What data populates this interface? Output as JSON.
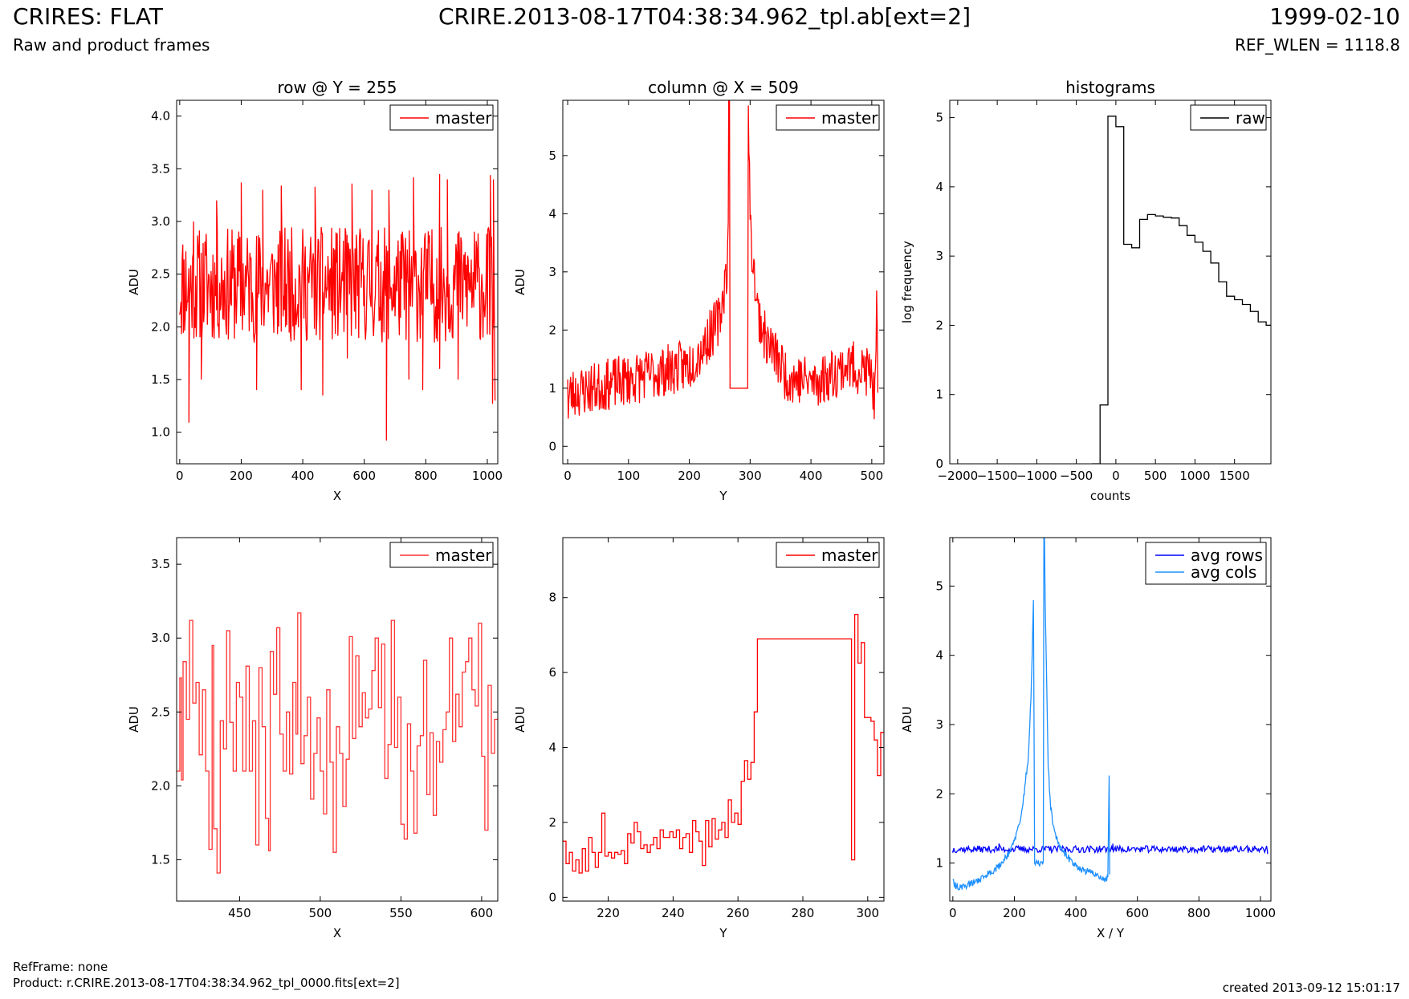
{
  "header": {
    "title": "CRIRES: FLAT",
    "subtitle": "Raw and product frames",
    "file": "CRIRE.2013-08-17T04:38:34.962_tpl.ab[ext=2]",
    "date": "1999-02-10",
    "ref_wlen": "REF_WLEN = 1118.8"
  },
  "footer": {
    "refframe": "RefFrame: none",
    "product": "Product: r.CRIRE.2013-08-17T04:38:34.962_tpl_0000.fits[ext=2]",
    "created": "created 2013-09-12 15:01:17"
  },
  "colors": {
    "master": "#ff0000",
    "raw": "#000000",
    "avg_rows": "#0000ff",
    "avg_cols": "#1e90ff"
  },
  "chart_data": [
    {
      "id": "row-full",
      "type": "line",
      "title": "row @ Y = 255",
      "xlabel": "X",
      "ylabel": "ADU",
      "xlim": [
        -10,
        1034
      ],
      "ylim": [
        0.7,
        4.15
      ],
      "xticks": [
        0,
        200,
        400,
        600,
        800,
        1000
      ],
      "yticks": [
        1.0,
        1.5,
        2.0,
        2.5,
        3.0,
        3.5,
        4.0
      ],
      "tick_decimals": 1,
      "legend": "top-right",
      "series": [
        {
          "name": "master",
          "color": "#ff0000",
          "step": false,
          "noise": {
            "seed": 11,
            "x_from": 0,
            "x_to": 1023,
            "step": 2,
            "amp": 0.55,
            "shape": "flat",
            "base": 2.4
          },
          "x": [
            30,
            45,
            70,
            120,
            200,
            250,
            270,
            330,
            395,
            440,
            465,
            545,
            560,
            625,
            672,
            680,
            745,
            760,
            790,
            845,
            845,
            870,
            905,
            1010,
            1017,
            1020,
            1025
          ],
          "y": [
            1.09,
            3.0,
            1.5,
            3.2,
            3.37,
            1.4,
            3.3,
            3.34,
            1.4,
            3.33,
            1.35,
            1.7,
            3.36,
            3.3,
            0.92,
            3.3,
            1.5,
            3.42,
            1.4,
            3.45,
            1.6,
            3.4,
            1.5,
            3.44,
            1.27,
            3.4,
            1.3
          ]
        }
      ]
    },
    {
      "id": "col-full",
      "type": "line",
      "title": "column @ X = 509",
      "xlabel": "Y",
      "ylabel": "ADU",
      "xlim": [
        -8,
        520
      ],
      "ylim": [
        -0.3,
        5.95
      ],
      "xticks": [
        0,
        100,
        200,
        300,
        400,
        500
      ],
      "yticks": [
        0,
        1,
        2,
        3,
        4,
        5
      ],
      "tick_decimals": 0,
      "legend": "top-right",
      "series": [
        {
          "name": "master",
          "color": "#ff0000",
          "step": false,
          "noise": {
            "seed": 23,
            "x_from": 0,
            "x_to": 510,
            "step": 1,
            "amp": 0.45,
            "shape": "peak",
            "center": 288,
            "base": 0.6,
            "gap": [
              266,
              296
            ]
          },
          "x": [
            0,
            1,
            3,
            200,
            225,
            250,
            262,
            264,
            265,
            266,
            266,
            296,
            296,
            297,
            300,
            305,
            312,
            325,
            340,
            360,
            410,
            460,
            500,
            505,
            508,
            510
          ],
          "y": [
            1.38,
            0.6,
            0.9,
            1.4,
            1.75,
            2.2,
            3.1,
            3.6,
            6.2,
            6.2,
            1.0,
            1.0,
            6.2,
            6.2,
            3.75,
            3.2,
            2.35,
            1.85,
            1.6,
            1.2,
            1.1,
            1.4,
            1.25,
            0.7,
            2.3,
            0.9
          ]
        }
      ]
    },
    {
      "id": "histogram",
      "type": "line",
      "title": "histograms",
      "xlabel": "counts",
      "ylabel": "log frequency",
      "xlim": [
        -2100,
        1960
      ],
      "ylim": [
        0,
        5.25
      ],
      "xticks": [
        -2000,
        -1500,
        -1000,
        -500,
        0,
        500,
        1000,
        1500
      ],
      "xtick_labels": [
        "−2000",
        "−1500",
        "−1000",
        "−500",
        "0",
        "500",
        "1000",
        "1500"
      ],
      "yticks": [
        0,
        1,
        2,
        3,
        4,
        5
      ],
      "tick_decimals": 0,
      "legend": "top-right",
      "series": [
        {
          "name": "raw",
          "color": "#000000",
          "step": true,
          "x": [
            -300,
            -200,
            -100,
            0,
            100,
            200,
            300,
            400,
            500,
            600,
            700,
            800,
            900,
            1000,
            1100,
            1200,
            1300,
            1400,
            1500,
            1600,
            1700,
            1800,
            1900,
            1960
          ],
          "y": [
            0,
            0.85,
            5.02,
            4.87,
            3.17,
            3.12,
            3.53,
            3.6,
            3.58,
            3.56,
            3.55,
            3.44,
            3.3,
            3.2,
            3.07,
            2.9,
            2.63,
            2.42,
            2.37,
            2.3,
            2.2,
            2.05,
            2.0,
            2.0
          ]
        }
      ]
    },
    {
      "id": "row-zoom",
      "type": "line",
      "title": "",
      "xlabel": "X",
      "ylabel": "ADU",
      "xlim": [
        411,
        610
      ],
      "ylim": [
        1.22,
        3.68
      ],
      "xticks": [
        450,
        500,
        550,
        600
      ],
      "yticks": [
        1.5,
        2.0,
        2.5,
        3.0,
        3.5
      ],
      "tick_decimals": 1,
      "legend": "top-right",
      "series": [
        {
          "name": "master",
          "color": "#ff3333",
          "step": true,
          "x": [
            411,
            413,
            414,
            415,
            417,
            419,
            421,
            423,
            425,
            427,
            429,
            431,
            433,
            434,
            436,
            438,
            440,
            442,
            444,
            446,
            448,
            450,
            452,
            454,
            456,
            458,
            460,
            462,
            464,
            466,
            468,
            469,
            471,
            473,
            475,
            477,
            479,
            481,
            483,
            485,
            486,
            488,
            490,
            492,
            494,
            496,
            498,
            500,
            502,
            504,
            506,
            508,
            510,
            512,
            514,
            516,
            518,
            520,
            522,
            524,
            526,
            528,
            530,
            532,
            534,
            536,
            538,
            540,
            542,
            544,
            546,
            548,
            550,
            552,
            554,
            556,
            558,
            560,
            562,
            564,
            566,
            568,
            570,
            572,
            574,
            576,
            578,
            580,
            582,
            584,
            586,
            588,
            590,
            592,
            594,
            596,
            598,
            600,
            602,
            604,
            606,
            608,
            610
          ],
          "y": [
            2.1,
            2.73,
            2.04,
            2.84,
            2.45,
            3.12,
            2.56,
            2.7,
            2.21,
            2.65,
            2.1,
            1.57,
            2.95,
            1.71,
            1.41,
            2.44,
            2.25,
            3.05,
            2.43,
            2.1,
            2.7,
            2.6,
            2.1,
            2.81,
            2.1,
            2.44,
            1.6,
            2.8,
            2.4,
            1.78,
            1.56,
            2.91,
            2.62,
            3.07,
            2.35,
            2.1,
            2.5,
            2.08,
            2.7,
            2.35,
            3.17,
            2.15,
            2.34,
            2.6,
            1.91,
            2.22,
            2.46,
            2.1,
            1.81,
            2.65,
            2.16,
            1.55,
            2.4,
            2.22,
            1.86,
            2.18,
            3.01,
            2.32,
            2.88,
            2.4,
            2.63,
            2.46,
            2.52,
            2.78,
            3.0,
            2.53,
            2.96,
            2.05,
            2.28,
            3.12,
            2.26,
            2.6,
            1.74,
            1.64,
            2.42,
            2.1,
            1.68,
            2.27,
            2.34,
            2.85,
            1.94,
            2.36,
            1.8,
            2.3,
            2.16,
            2.38,
            2.5,
            3.0,
            2.3,
            2.62,
            2.4,
            2.77,
            2.84,
            3.0,
            2.65,
            2.54,
            3.1,
            2.2,
            1.7,
            2.68,
            2.22,
            2.45,
            2.46
          ]
        }
      ]
    },
    {
      "id": "col-zoom",
      "type": "line",
      "title": "",
      "xlabel": "Y",
      "ylabel": "ADU",
      "xlim": [
        206,
        305
      ],
      "ylim": [
        -0.1,
        9.6
      ],
      "xticks": [
        220,
        240,
        260,
        280,
        300
      ],
      "yticks": [
        0,
        2,
        4,
        6,
        8
      ],
      "tick_decimals": 0,
      "legend": "top-right",
      "series": [
        {
          "name": "master",
          "color": "#ff0000",
          "step": true,
          "x": [
            206,
            207,
            208,
            209,
            210,
            211,
            212,
            213,
            214,
            215,
            216,
            217,
            218,
            219,
            220,
            221,
            222,
            223,
            224,
            225,
            226,
            227,
            228,
            229,
            230,
            231,
            232,
            233,
            234,
            235,
            236,
            237,
            238,
            239,
            240,
            241,
            242,
            243,
            244,
            245,
            246,
            247,
            248,
            249,
            250,
            251,
            252,
            253,
            254,
            255,
            256,
            257,
            258,
            259,
            260,
            261,
            262,
            263,
            264,
            265,
            266,
            295,
            296,
            297,
            298,
            299,
            300,
            301,
            302,
            303,
            304,
            305
          ],
          "y": [
            1.5,
            0.9,
            1.2,
            0.7,
            1.0,
            0.65,
            1.3,
            0.7,
            1.6,
            1.2,
            0.8,
            1.2,
            2.25,
            1.1,
            1.2,
            1.05,
            1.2,
            1.15,
            1.25,
            0.9,
            1.7,
            1.45,
            2.0,
            1.75,
            1.3,
            1.4,
            1.2,
            1.4,
            1.6,
            1.3,
            1.8,
            1.6,
            1.6,
            1.75,
            1.6,
            1.8,
            1.3,
            1.6,
            1.7,
            1.2,
            2.05,
            1.75,
            1.5,
            0.85,
            2.05,
            1.35,
            2.1,
            1.55,
            1.8,
            2.0,
            1.6,
            2.6,
            2.0,
            2.25,
            1.95,
            3.1,
            3.65,
            3.15,
            3.6,
            4.95,
            6.9,
            1.0,
            7.55,
            6.25,
            6.8,
            4.8,
            4.8,
            4.7,
            4.2,
            3.25,
            4.4,
            4.4
          ]
        }
      ]
    },
    {
      "id": "avg",
      "type": "line",
      "title": "",
      "xlabel": "X / Y",
      "ylabel": "ADU",
      "xlim": [
        -10,
        1034
      ],
      "ylim": [
        0.45,
        5.7
      ],
      "xticks": [
        0,
        200,
        400,
        600,
        800,
        1000
      ],
      "yticks": [
        1,
        2,
        3,
        4,
        5
      ],
      "tick_decimals": 0,
      "legend": "top-right",
      "series": [
        {
          "name": "avg rows",
          "color": "#0000ff",
          "step": false,
          "noise": {
            "seed": 37,
            "x_from": 0,
            "x_to": 1023,
            "step": 3,
            "amp": 0.05,
            "shape": "flat",
            "base": 1.2
          },
          "x": [
            0,
            150,
            300,
            500,
            520,
            700,
            900,
            960,
            1023
          ],
          "y": [
            1.15,
            1.28,
            1.22,
            1.18,
            1.28,
            1.22,
            1.2,
            1.15,
            1.13
          ]
        },
        {
          "name": "avg cols",
          "color": "#1e90ff",
          "step": false,
          "noise": {
            "seed": 53,
            "x_from": 0,
            "x_to": 510,
            "step": 2,
            "amp": 0.05,
            "shape": "flat",
            "base": 0
          },
          "x": [
            0,
            5,
            20,
            60,
            100,
            150,
            190,
            220,
            245,
            255,
            262,
            266,
            268,
            295,
            296,
            298,
            300,
            305,
            310,
            318,
            330,
            350,
            380,
            420,
            460,
            500,
            505,
            507,
            509,
            510
          ],
          "y": [
            0.75,
            0.68,
            0.65,
            0.7,
            0.8,
            0.95,
            1.2,
            1.6,
            2.5,
            3.5,
            4.75,
            1.0,
            1.0,
            1.0,
            5.7,
            5.7,
            4.8,
            3.6,
            2.4,
            1.8,
            1.45,
            1.2,
            1.05,
            0.9,
            0.85,
            0.75,
            0.8,
            2.3,
            2.3,
            0.8
          ]
        }
      ]
    }
  ]
}
